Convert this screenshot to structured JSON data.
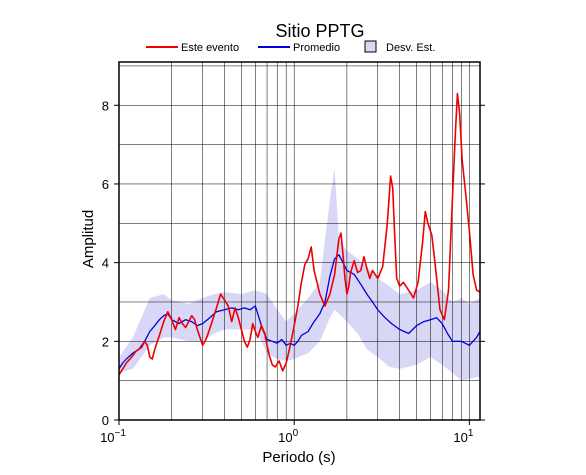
{
  "chart_data": {
    "type": "line",
    "title": "Sitio PPTG",
    "xlabel": "Periodo (s)",
    "ylabel": "Amplitud",
    "xscale": "log",
    "xlim": [
      0.1,
      11.5
    ],
    "ylim": [
      0,
      9.1
    ],
    "grid": true,
    "legend_position": "top",
    "x_ticks": [
      {
        "value": 0.1,
        "base": "10",
        "exp": "−1"
      },
      {
        "value": 1,
        "base": "10",
        "exp": "0"
      },
      {
        "value": 10,
        "base": "10",
        "exp": "1"
      }
    ],
    "y_ticks": [
      0,
      2,
      4,
      6,
      8
    ],
    "legend": {
      "event_label": "Este evento",
      "mean_label": "Promedio",
      "std_label": "Desv. Est."
    },
    "colors": {
      "event": "#ee0000",
      "mean": "#0000dd",
      "std_fill": "#d8d8f6"
    },
    "series": [
      {
        "name": "Este evento",
        "points": [
          [
            0.1,
            1.15
          ],
          [
            0.105,
            1.3
          ],
          [
            0.11,
            1.45
          ],
          [
            0.118,
            1.6
          ],
          [
            0.125,
            1.75
          ],
          [
            0.13,
            1.8
          ],
          [
            0.135,
            1.85
          ],
          [
            0.14,
            2.0
          ],
          [
            0.145,
            1.9
          ],
          [
            0.15,
            1.6
          ],
          [
            0.155,
            1.55
          ],
          [
            0.16,
            1.8
          ],
          [
            0.17,
            2.15
          ],
          [
            0.18,
            2.5
          ],
          [
            0.19,
            2.75
          ],
          [
            0.2,
            2.55
          ],
          [
            0.21,
            2.3
          ],
          [
            0.22,
            2.6
          ],
          [
            0.23,
            2.45
          ],
          [
            0.24,
            2.35
          ],
          [
            0.25,
            2.5
          ],
          [
            0.26,
            2.65
          ],
          [
            0.27,
            2.55
          ],
          [
            0.28,
            2.3
          ],
          [
            0.29,
            2.1
          ],
          [
            0.3,
            1.9
          ],
          [
            0.31,
            2.0
          ],
          [
            0.32,
            2.15
          ],
          [
            0.34,
            2.5
          ],
          [
            0.36,
            2.85
          ],
          [
            0.38,
            3.2
          ],
          [
            0.4,
            3.05
          ],
          [
            0.42,
            2.9
          ],
          [
            0.44,
            2.5
          ],
          [
            0.46,
            2.85
          ],
          [
            0.48,
            2.6
          ],
          [
            0.5,
            2.3
          ],
          [
            0.52,
            2.0
          ],
          [
            0.54,
            1.85
          ],
          [
            0.56,
            2.05
          ],
          [
            0.58,
            2.45
          ],
          [
            0.6,
            2.25
          ],
          [
            0.62,
            2.1
          ],
          [
            0.65,
            2.4
          ],
          [
            0.68,
            2.2
          ],
          [
            0.7,
            1.9
          ],
          [
            0.72,
            1.65
          ],
          [
            0.75,
            1.4
          ],
          [
            0.78,
            1.35
          ],
          [
            0.82,
            1.5
          ],
          [
            0.86,
            1.25
          ],
          [
            0.9,
            1.45
          ],
          [
            0.95,
            1.9
          ],
          [
            1.0,
            2.4
          ],
          [
            1.05,
            2.9
          ],
          [
            1.1,
            3.5
          ],
          [
            1.15,
            3.95
          ],
          [
            1.2,
            4.1
          ],
          [
            1.25,
            4.4
          ],
          [
            1.3,
            3.8
          ],
          [
            1.35,
            3.5
          ],
          [
            1.4,
            3.2
          ],
          [
            1.5,
            2.9
          ],
          [
            1.6,
            3.2
          ],
          [
            1.7,
            3.7
          ],
          [
            1.8,
            4.6
          ],
          [
            1.85,
            4.75
          ],
          [
            1.9,
            4.2
          ],
          [
            1.95,
            3.6
          ],
          [
            2.0,
            3.2
          ],
          [
            2.05,
            3.4
          ],
          [
            2.1,
            3.75
          ],
          [
            2.2,
            4.05
          ],
          [
            2.3,
            3.75
          ],
          [
            2.4,
            3.8
          ],
          [
            2.5,
            4.15
          ],
          [
            2.6,
            3.85
          ],
          [
            2.7,
            3.6
          ],
          [
            2.8,
            3.8
          ],
          [
            3.0,
            3.6
          ],
          [
            3.2,
            3.9
          ],
          [
            3.4,
            5.0
          ],
          [
            3.55,
            6.2
          ],
          [
            3.65,
            5.9
          ],
          [
            3.75,
            4.7
          ],
          [
            3.85,
            3.6
          ],
          [
            4.0,
            3.4
          ],
          [
            4.2,
            3.5
          ],
          [
            4.5,
            3.3
          ],
          [
            4.8,
            3.1
          ],
          [
            5.1,
            3.5
          ],
          [
            5.4,
            4.5
          ],
          [
            5.6,
            5.3
          ],
          [
            5.8,
            5.0
          ],
          [
            6.1,
            4.7
          ],
          [
            6.4,
            3.9
          ],
          [
            6.8,
            2.8
          ],
          [
            7.2,
            2.55
          ],
          [
            7.6,
            3.3
          ],
          [
            8.0,
            5.6
          ],
          [
            8.3,
            7.2
          ],
          [
            8.55,
            8.3
          ],
          [
            8.8,
            7.8
          ],
          [
            9.1,
            6.6
          ],
          [
            9.5,
            5.8
          ],
          [
            10.0,
            4.8
          ],
          [
            10.5,
            3.7
          ],
          [
            11.0,
            3.3
          ],
          [
            11.5,
            3.25
          ]
        ]
      },
      {
        "name": "Promedio",
        "points": [
          [
            0.1,
            1.3
          ],
          [
            0.105,
            1.45
          ],
          [
            0.11,
            1.55
          ],
          [
            0.12,
            1.7
          ],
          [
            0.13,
            1.8
          ],
          [
            0.14,
            2.0
          ],
          [
            0.15,
            2.25
          ],
          [
            0.16,
            2.4
          ],
          [
            0.17,
            2.55
          ],
          [
            0.18,
            2.65
          ],
          [
            0.19,
            2.7
          ],
          [
            0.2,
            2.55
          ],
          [
            0.22,
            2.45
          ],
          [
            0.24,
            2.55
          ],
          [
            0.26,
            2.5
          ],
          [
            0.28,
            2.4
          ],
          [
            0.3,
            2.45
          ],
          [
            0.33,
            2.6
          ],
          [
            0.36,
            2.75
          ],
          [
            0.4,
            2.8
          ],
          [
            0.44,
            2.85
          ],
          [
            0.48,
            2.8
          ],
          [
            0.52,
            2.85
          ],
          [
            0.56,
            2.8
          ],
          [
            0.6,
            2.9
          ],
          [
            0.63,
            2.6
          ],
          [
            0.66,
            2.3
          ],
          [
            0.7,
            2.05
          ],
          [
            0.75,
            2.0
          ],
          [
            0.8,
            1.95
          ],
          [
            0.85,
            2.05
          ],
          [
            0.9,
            1.9
          ],
          [
            0.95,
            1.95
          ],
          [
            1.0,
            1.9
          ],
          [
            1.05,
            2.0
          ],
          [
            1.1,
            2.15
          ],
          [
            1.2,
            2.25
          ],
          [
            1.3,
            2.5
          ],
          [
            1.4,
            2.7
          ],
          [
            1.5,
            3.0
          ],
          [
            1.6,
            3.65
          ],
          [
            1.7,
            4.1
          ],
          [
            1.8,
            4.2
          ],
          [
            1.9,
            4.0
          ],
          [
            2.0,
            3.8
          ],
          [
            2.2,
            3.7
          ],
          [
            2.4,
            3.45
          ],
          [
            2.6,
            3.2
          ],
          [
            2.8,
            3.0
          ],
          [
            3.0,
            2.8
          ],
          [
            3.3,
            2.6
          ],
          [
            3.6,
            2.45
          ],
          [
            4.0,
            2.3
          ],
          [
            4.5,
            2.2
          ],
          [
            5.0,
            2.4
          ],
          [
            5.5,
            2.5
          ],
          [
            6.0,
            2.55
          ],
          [
            6.5,
            2.6
          ],
          [
            7.0,
            2.45
          ],
          [
            7.5,
            2.2
          ],
          [
            8.0,
            2.0
          ],
          [
            9.0,
            2.0
          ],
          [
            10.0,
            1.9
          ],
          [
            11.0,
            2.1
          ],
          [
            11.5,
            2.25
          ]
        ]
      }
    ],
    "std_band": {
      "name": "Desv. Est.",
      "x": [
        0.1,
        0.12,
        0.15,
        0.18,
        0.2,
        0.25,
        0.3,
        0.35,
        0.4,
        0.5,
        0.6,
        0.7,
        0.8,
        0.9,
        1.0,
        1.2,
        1.4,
        1.6,
        1.7,
        1.8,
        2.0,
        2.3,
        2.6,
        3.0,
        3.5,
        4.0,
        5.0,
        6.0,
        7.0,
        8.0,
        9.0,
        10.0,
        11.5
      ],
      "upper": [
        1.6,
        2.1,
        3.1,
        3.2,
        3.05,
        2.95,
        3.1,
        3.2,
        3.25,
        3.2,
        3.3,
        3.2,
        2.8,
        2.5,
        2.7,
        3.1,
        3.5,
        5.6,
        6.4,
        4.6,
        4.3,
        4.1,
        3.9,
        3.6,
        3.4,
        3.2,
        3.3,
        3.5,
        3.3,
        3.0,
        3.1,
        2.95,
        3.1
      ],
      "lower": [
        1.2,
        1.3,
        1.9,
        2.1,
        2.1,
        2.0,
        2.0,
        2.2,
        2.3,
        2.3,
        2.3,
        1.7,
        1.55,
        1.5,
        1.55,
        1.7,
        2.0,
        2.6,
        2.8,
        2.7,
        2.5,
        2.2,
        1.8,
        1.6,
        1.35,
        1.3,
        1.4,
        1.6,
        1.4,
        1.2,
        1.0,
        1.05,
        1.1
      ]
    }
  }
}
